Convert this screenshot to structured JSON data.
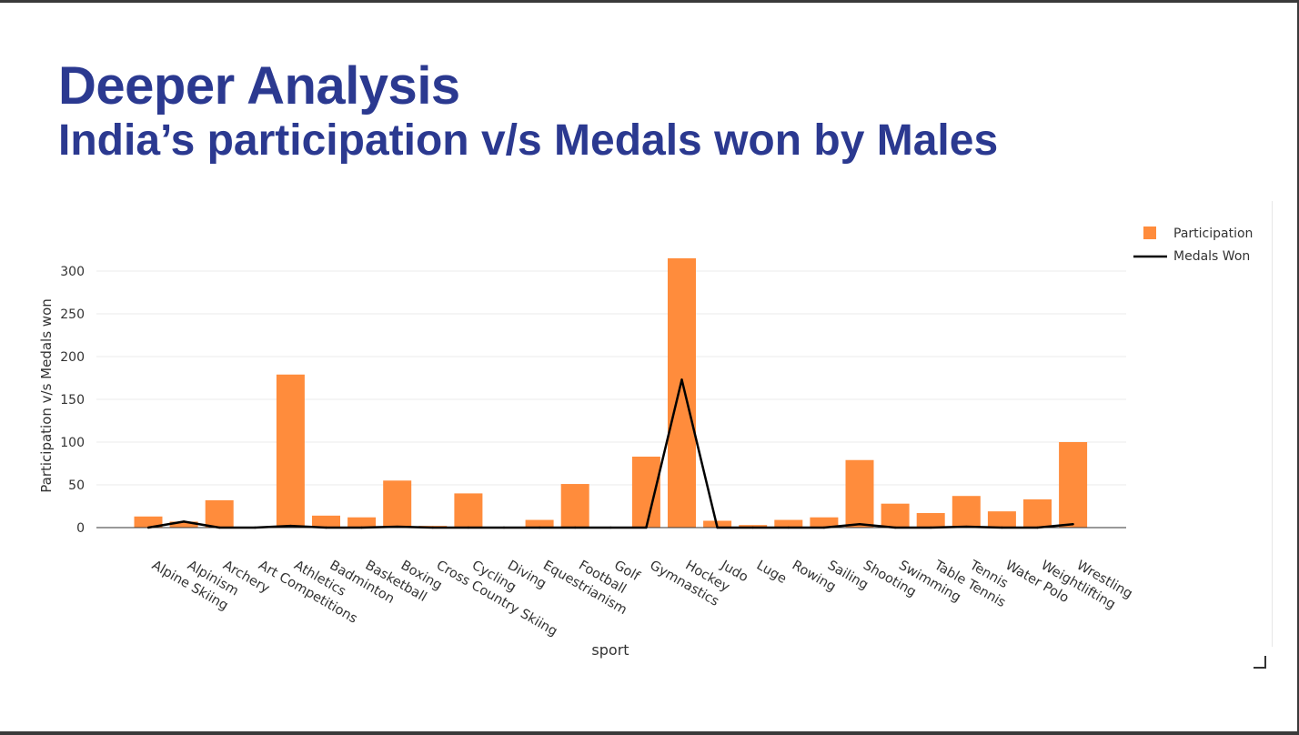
{
  "slide": {
    "title": "Deeper Analysis",
    "subtitle": "India’s participation v/s Medals won by Males"
  },
  "chart_data": {
    "type": "bar",
    "xlabel": "sport",
    "ylabel": "Participation v/s Medals won",
    "ylim": [
      0,
      320
    ],
    "yticks": [
      0,
      50,
      100,
      150,
      200,
      250,
      300
    ],
    "grid": true,
    "legend_position": "top-right",
    "colors": {
      "bar": "#ff8c3c",
      "line": "#000000"
    },
    "categories": [
      "Alpine Skiing",
      "Alpinism",
      "Archery",
      "Art Competitions",
      "Athletics",
      "Badminton",
      "Basketball",
      "Boxing",
      "Cross Country Skiing",
      "Cycling",
      "Diving",
      "Equestrianism",
      "Football",
      "Golf",
      "Gymnastics",
      "Hockey",
      "Judo",
      "Luge",
      "Rowing",
      "Sailing",
      "Shooting",
      "Swimming",
      "Table Tennis",
      "Tennis",
      "Water Polo",
      "Weightlifting",
      "Wrestling"
    ],
    "series": [
      {
        "name": "Participation",
        "kind": "bar",
        "values": [
          13,
          7,
          32,
          0,
          179,
          14,
          12,
          55,
          2,
          40,
          1,
          9,
          51,
          1,
          83,
          315,
          8,
          3,
          9,
          12,
          79,
          28,
          17,
          37,
          19,
          33,
          100
        ]
      },
      {
        "name": "Medals Won",
        "kind": "line",
        "values": [
          0,
          7,
          0,
          0,
          2,
          0,
          0,
          1,
          0,
          0,
          0,
          0,
          0,
          0,
          0,
          173,
          0,
          0,
          0,
          0,
          4,
          0,
          0,
          1,
          0,
          0,
          4
        ]
      }
    ]
  }
}
